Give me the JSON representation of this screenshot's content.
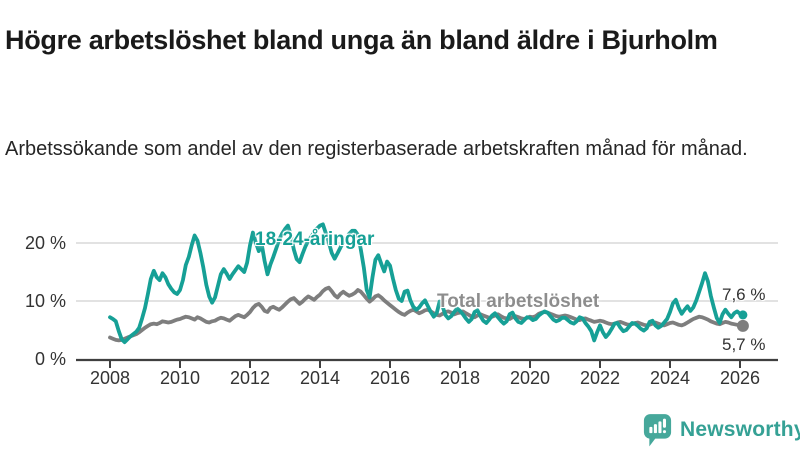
{
  "header": {
    "title": "Högre arbetslöshet bland unga än bland äldre i Bjurholm",
    "subtitle": "Arbetssökande som andel av den registerbaserade arbetskraften månad för månad."
  },
  "footer": {
    "brand": "Newsworthy"
  },
  "colors": {
    "accent_teal": "#16A096",
    "line_gray": "#7E7E7E",
    "label_gray": "#8D8D8D",
    "axis_text": "#333333",
    "gridline": "#D9D9D9",
    "axis": "#3F3F3F",
    "brand_teal": "#35A195"
  },
  "chart_data": {
    "type": "line",
    "unit": "%",
    "title": "Högre arbetslöshet bland unga än bland äldre i Bjurholm",
    "x_start": {
      "year": 2008,
      "month": 1
    },
    "x_end": {
      "year": 2026,
      "month": 2
    },
    "points_per_year": 12,
    "x_tick_years": [
      2008,
      2010,
      2012,
      2014,
      2016,
      2018,
      2020,
      2022,
      2024,
      2026
    ],
    "y_ticks": [
      0,
      10,
      20
    ],
    "y_tick_suffix": " %",
    "ylim": [
      0,
      25
    ],
    "grid": "horizontal",
    "legend_position": "inline-labels",
    "series": [
      {
        "name": "Total arbetslöshet",
        "color": "#7E7E7E",
        "end_label": "5,7 %",
        "end_value": 5.7,
        "values": [
          3.7,
          3.5,
          3.3,
          3.2,
          3.3,
          3.5,
          3.7,
          3.9,
          4.1,
          4.3,
          4.6,
          5.0,
          5.4,
          5.7,
          6.0,
          6.1,
          6.0,
          6.2,
          6.5,
          6.4,
          6.3,
          6.4,
          6.6,
          6.8,
          6.9,
          7.1,
          7.3,
          7.2,
          7.0,
          6.8,
          7.2,
          7.0,
          6.7,
          6.4,
          6.3,
          6.5,
          6.6,
          6.9,
          7.1,
          7.0,
          6.8,
          6.6,
          7.0,
          7.4,
          7.6,
          7.4,
          7.2,
          7.6,
          8.1,
          8.8,
          9.3,
          9.5,
          9.0,
          8.3,
          8.1,
          8.8,
          9.0,
          8.7,
          8.5,
          8.9,
          9.4,
          9.9,
          10.3,
          10.5,
          10.0,
          9.5,
          9.9,
          10.4,
          10.8,
          10.5,
          10.2,
          10.7,
          11.1,
          11.7,
          12.1,
          12.3,
          11.7,
          11.0,
          10.6,
          11.2,
          11.6,
          11.2,
          10.9,
          11.1,
          11.4,
          11.9,
          11.6,
          11.0,
          10.4,
          9.9,
          10.3,
          10.8,
          11.0,
          10.6,
          10.1,
          9.7,
          9.3,
          8.9,
          8.5,
          8.1,
          7.8,
          7.6,
          8.0,
          8.3,
          8.5,
          8.2,
          7.9,
          8.1,
          8.4,
          8.5,
          8.2,
          7.9,
          7.6,
          7.5,
          7.8,
          8.1,
          8.2,
          8.0,
          7.7,
          7.9,
          8.0,
          8.2,
          7.9,
          7.6,
          7.3,
          7.2,
          7.5,
          7.7,
          7.5,
          7.3,
          7.1,
          7.3,
          7.5,
          7.7,
          7.4,
          7.1,
          7.0,
          6.9,
          7.2,
          7.4,
          7.2,
          7.0,
          6.9,
          7.1,
          7.3,
          7.2,
          7.4,
          7.8,
          8.0,
          8.1,
          8.0,
          7.8,
          7.6,
          7.4,
          7.3,
          7.4,
          7.5,
          7.4,
          7.2,
          7.0,
          6.8,
          6.7,
          6.9,
          7.0,
          6.8,
          6.6,
          6.4,
          6.5,
          6.6,
          6.5,
          6.3,
          6.1,
          6.0,
          6.1,
          6.3,
          6.4,
          6.2,
          6.0,
          5.9,
          6.0,
          6.2,
          6.3,
          6.1,
          5.9,
          5.8,
          5.9,
          6.1,
          6.3,
          6.1,
          5.9,
          5.8,
          6.0,
          6.2,
          6.3,
          6.1,
          5.9,
          5.8,
          6.0,
          6.3,
          6.6,
          6.9,
          7.1,
          7.3,
          7.2,
          7.0,
          6.8,
          6.5,
          6.3,
          6.1,
          6.0,
          6.2,
          6.4,
          6.3,
          6.1,
          6.0,
          5.9,
          5.8,
          5.7
        ]
      },
      {
        "name": "18-24-åringar",
        "color": "#16A096",
        "end_label": "7,6 %",
        "end_value": 7.6,
        "values": [
          7.2,
          6.9,
          6.5,
          4.8,
          3.4,
          2.9,
          3.4,
          3.9,
          4.3,
          4.7,
          5.4,
          7.0,
          8.8,
          11.2,
          13.8,
          15.2,
          14.1,
          13.6,
          14.8,
          14.1,
          12.9,
          12.1,
          11.5,
          11.2,
          11.9,
          13.6,
          16.2,
          17.6,
          19.6,
          21.3,
          20.4,
          18.3,
          15.8,
          12.8,
          10.8,
          9.7,
          10.6,
          12.6,
          14.6,
          15.5,
          14.7,
          13.8,
          14.6,
          15.3,
          16.0,
          15.5,
          15.0,
          16.6,
          19.6,
          21.8,
          20.1,
          18.6,
          19.8,
          16.9,
          14.6,
          16.3,
          17.6,
          19.1,
          20.6,
          21.6,
          22.4,
          23.0,
          21.4,
          18.9,
          17.2,
          16.7,
          18.1,
          19.4,
          20.4,
          21.1,
          21.9,
          22.5,
          23.0,
          23.2,
          21.7,
          20.1,
          18.3,
          17.3,
          18.2,
          19.2,
          20.1,
          20.9,
          21.6,
          22.1,
          22.1,
          21.4,
          18.9,
          15.8,
          11.9,
          10.6,
          14.1,
          17.1,
          17.9,
          16.4,
          15.1,
          16.8,
          16.1,
          13.9,
          11.9,
          10.4,
          10.0,
          11.6,
          11.8,
          10.1,
          9.0,
          8.5,
          8.9,
          9.6,
          10.1,
          9.1,
          8.1,
          7.3,
          7.9,
          9.9,
          9.1,
          7.6,
          7.0,
          7.4,
          8.1,
          8.7,
          8.3,
          7.7,
          7.0,
          6.4,
          6.9,
          8.1,
          8.4,
          7.4,
          6.6,
          6.2,
          6.8,
          7.5,
          7.9,
          7.2,
          6.6,
          6.1,
          6.5,
          7.7,
          8.0,
          7.0,
          6.4,
          6.2,
          6.7,
          7.2,
          7.1,
          6.7,
          6.9,
          7.5,
          7.9,
          8.2,
          8.0,
          7.4,
          6.8,
          6.5,
          6.7,
          7.1,
          7.1,
          6.7,
          6.3,
          6.1,
          6.5,
          7.2,
          7.0,
          6.2,
          5.6,
          4.8,
          3.2,
          4.6,
          5.8,
          4.6,
          3.8,
          4.4,
          5.2,
          6.1,
          6.2,
          5.4,
          4.8,
          5.0,
          5.6,
          6.2,
          6.1,
          5.7,
          5.2,
          4.9,
          5.3,
          6.4,
          6.6,
          5.8,
          5.4,
          5.7,
          6.3,
          6.9,
          8.1,
          9.6,
          10.2,
          8.8,
          7.8,
          8.5,
          9.1,
          8.3,
          8.9,
          10.1,
          11.6,
          13.1,
          14.8,
          13.4,
          10.9,
          8.9,
          7.1,
          6.2,
          7.7,
          8.5,
          7.8,
          7.2,
          7.9,
          8.2,
          7.8,
          7.6
        ]
      }
    ]
  }
}
